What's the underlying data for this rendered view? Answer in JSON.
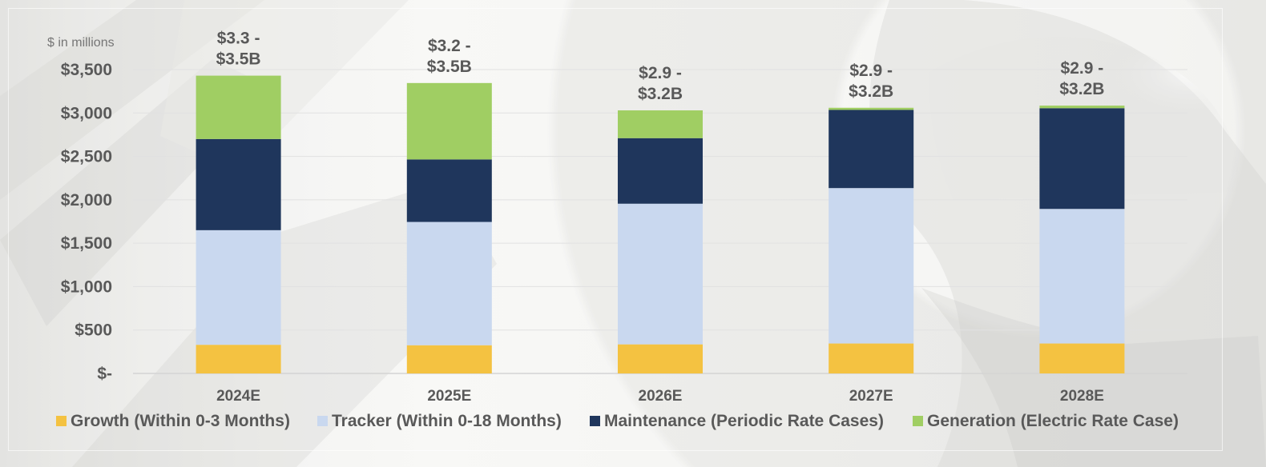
{
  "chart_data": {
    "type": "bar",
    "stacked": true,
    "unit_label": "$ in millions",
    "categories": [
      "2024E",
      "2025E",
      "2026E",
      "2027E",
      "2028E"
    ],
    "series": [
      {
        "name": "Growth (Within 0-3 Months)",
        "color": "#F4C241",
        "values": [
          330,
          325,
          335,
          345,
          345
        ]
      },
      {
        "name": "Tracker (Within 0-18 Months)",
        "color": "#C9D8EF",
        "values": [
          1320,
          1420,
          1620,
          1790,
          1550
        ]
      },
      {
        "name": "Maintenance (Periodic Rate Cases)",
        "color": "#1F365C",
        "values": [
          1050,
          720,
          755,
          900,
          1160
        ]
      },
      {
        "name": "Generation (Electric Rate Case)",
        "color": "#A0CE63",
        "values": [
          730,
          880,
          320,
          25,
          30
        ]
      }
    ],
    "totals": [
      [
        "$3.3 -",
        "$3.5B"
      ],
      [
        "$3.2 -",
        "$3.5B"
      ],
      [
        "$2.9 -",
        "$3.2B"
      ],
      [
        "$2.9 -",
        "$3.2B"
      ],
      [
        "$2.9 -",
        "$3.2B"
      ]
    ],
    "yticks": [
      0,
      500,
      1000,
      1500,
      2000,
      2500,
      3000,
      3500
    ],
    "ytick_labels": [
      "$-",
      "$500",
      "$1,000",
      "$1,500",
      "$2,000",
      "$2,500",
      "$3,000",
      "$3,500"
    ],
    "ylim": [
      0,
      3500
    ],
    "grid": true,
    "legend_position": "bottom",
    "title": "",
    "xlabel": "",
    "ylabel": ""
  }
}
